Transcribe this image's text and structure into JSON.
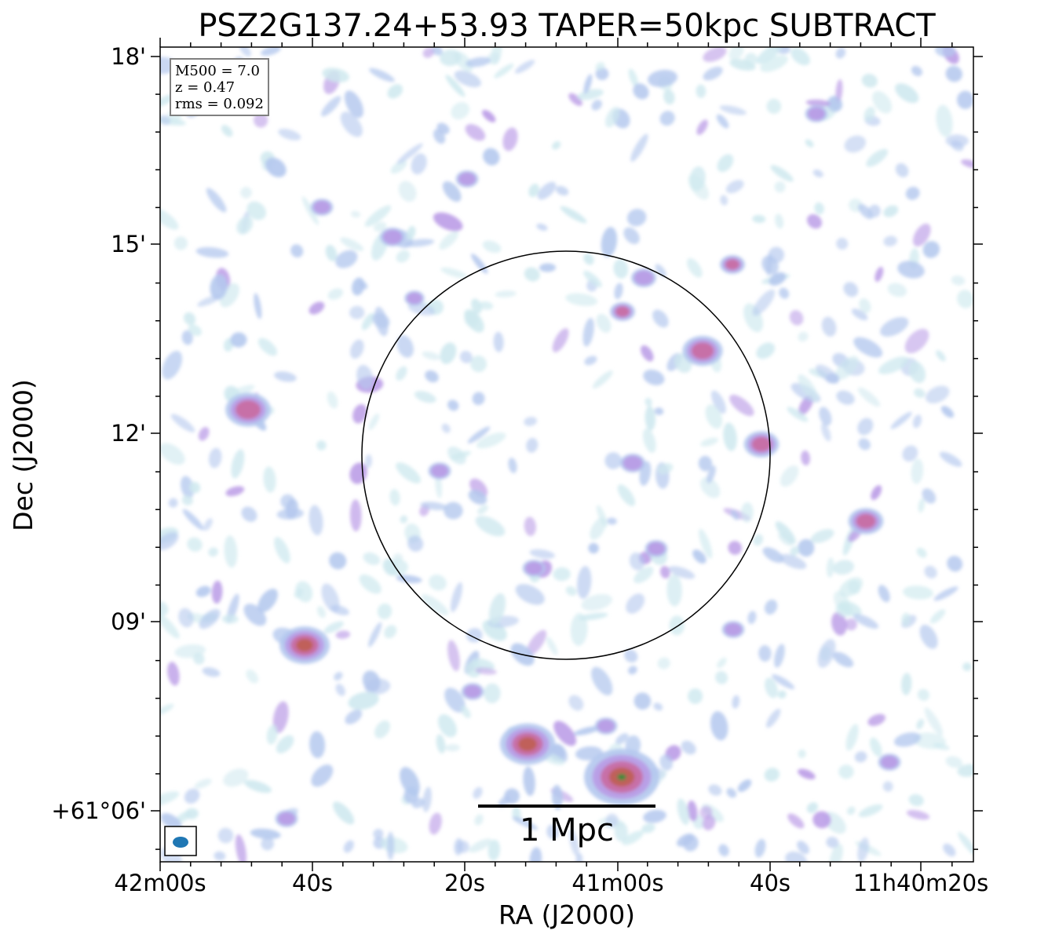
{
  "title": "PSZ2G137.24+53.93 TAPER=50kpc SUBTRACT",
  "axes": {
    "xlabel": "RA (J2000)",
    "ylabel": "Dec (J2000)",
    "xticks": [
      "42m00s",
      "40s",
      "20s",
      "41m00s",
      "40s",
      "11h40m20s"
    ],
    "yticks": [
      "18'",
      "15'",
      "12'",
      "09'",
      "+61°06'"
    ]
  },
  "info_box": {
    "line1": "M500 = 7.0",
    "line2": "z = 0.47",
    "line3": "rms = 0.092"
  },
  "scale_bar": {
    "label": "1 Mpc"
  },
  "colormap": [
    "#ffffff",
    "#cfe9ef",
    "#b4c8ee",
    "#b99ae6",
    "#c96aa0",
    "#bf5e52",
    "#2e8e3a"
  ],
  "circle_color": "#000000",
  "beam_color": "#1f77b4"
}
